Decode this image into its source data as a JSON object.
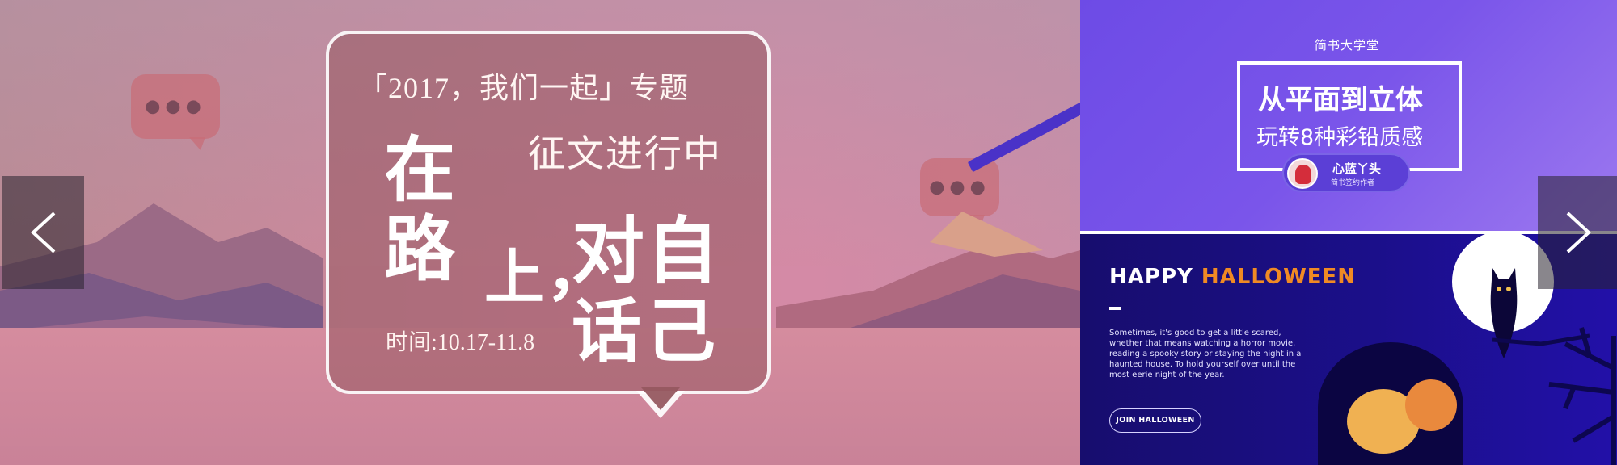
{
  "carousel": {
    "main_banner": {
      "card_line1": "「2017，我们一起」专题",
      "card_line2": "征文进行中",
      "headline_chars": {
        "zai": "在",
        "lu": "路",
        "shang": "上",
        "comma": "，",
        "dui": "对",
        "zi": "自",
        "hua": "话",
        "ji": "己"
      },
      "time": "时间:10.17-11.8",
      "colors": {
        "accent": "#c98298",
        "card": "#965860"
      }
    },
    "side_top": {
      "kicker": "简书大学堂",
      "headline": "从平面到立体",
      "subheadline": "玩转8种彩铅质感",
      "author_name": "心蓝丫头",
      "author_role": "简书签约作者",
      "colors": {
        "bg": "#6d4be6"
      }
    },
    "side_bottom": {
      "title_word1": "HAPPY",
      "title_word2": "HALLOWEEN",
      "copy": "Sometimes, it's good to get a little scared, whether that means watching a horror movie, reading a spooky story or staying the night in a haunted house. To hold yourself over until the most eerie night of the year.",
      "button_label": "JOIN HALLOWEEN",
      "colors": {
        "bg": "#1b0f8a",
        "accent": "#f08a24"
      }
    },
    "nav": {
      "prev_icon": "chevron-left-icon",
      "next_icon": "chevron-right-icon"
    }
  }
}
